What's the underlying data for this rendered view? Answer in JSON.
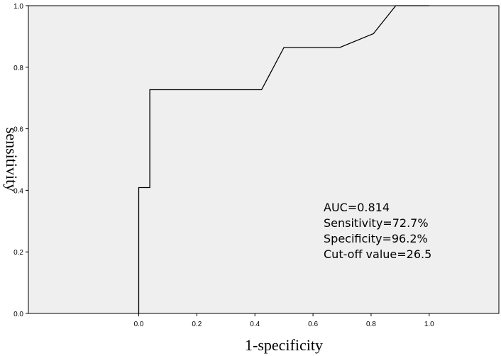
{
  "chart_data": {
    "type": "line",
    "title": "",
    "xlabel": "1-specificity",
    "ylabel": "sensitivity",
    "xlim": [
      -0.38,
      1.24
    ],
    "ylim": [
      0,
      1
    ],
    "x_ticks": [
      "0.0",
      "0.2",
      "0.4",
      "0.6",
      "0.8",
      "1.0"
    ],
    "y_ticks": [
      "0.0",
      "0.2",
      "0.4",
      "0.6",
      "0.8",
      "1.0"
    ],
    "grid": false,
    "plot_background": "#efefef",
    "line_color": "#000000",
    "series": [
      {
        "x": [
          0.0,
          0.0,
          0.038,
          0.038,
          0.423,
          0.5,
          0.692,
          0.808,
          0.885,
          1.0
        ],
        "y": [
          0.0,
          0.409,
          0.409,
          0.727,
          0.727,
          0.864,
          0.864,
          0.909,
          1.0,
          1.0
        ]
      }
    ],
    "annotations": [
      "AUC=0.814",
      "Sensitivity=72.7%",
      "Specificity=96.2%",
      "Cut-off value=26.5"
    ]
  }
}
